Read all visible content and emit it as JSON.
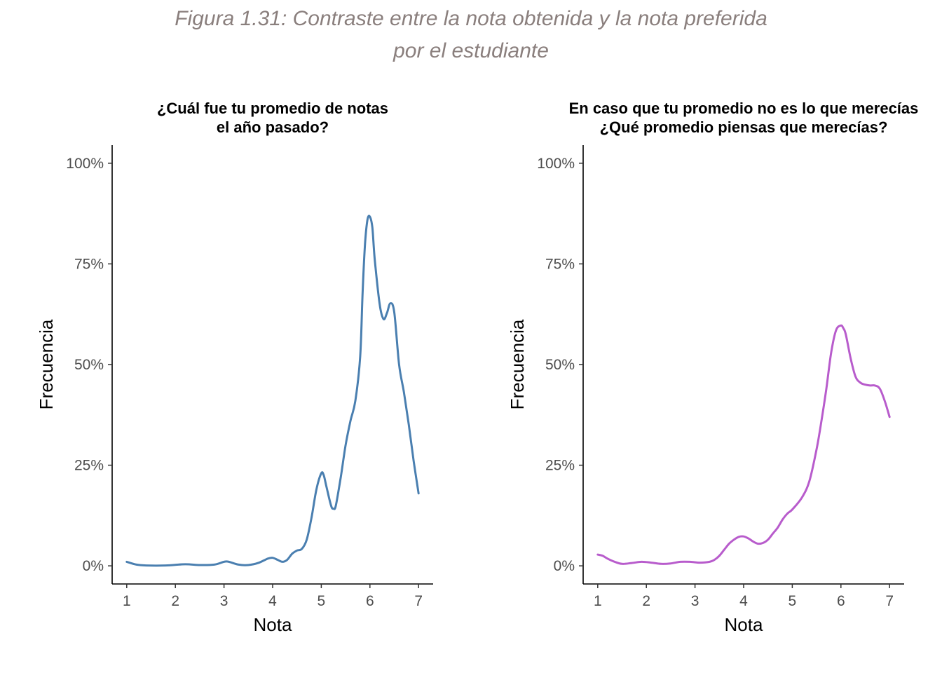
{
  "caption": {
    "line1": "Figura 1.31: Contraste entre la nota obtenida y la nota preferida",
    "line2": "por el estudiante"
  },
  "chart_data": [
    {
      "type": "line",
      "title_lines": [
        "¿Cuál fue tu promedio de notas",
        "el año pasado?"
      ],
      "xlabel": "Nota",
      "ylabel": "Frecuencia",
      "xlim": [
        0.7,
        7.3
      ],
      "ylim": [
        -0.045,
        1.045
      ],
      "x_ticks": [
        1,
        2,
        3,
        4,
        5,
        6,
        7
      ],
      "x_tick_labels": [
        "1",
        "2",
        "3",
        "4",
        "5",
        "6",
        "7"
      ],
      "y_ticks": [
        0,
        0.25,
        0.5,
        0.75,
        1.0
      ],
      "y_tick_labels": [
        "0%",
        "25%",
        "50%",
        "75%",
        "100%"
      ],
      "color": "#4a7fb0",
      "grid": false,
      "series": [
        {
          "x": [
            1.0,
            1.2,
            1.4,
            1.8,
            2.2,
            2.5,
            2.8,
            3.0,
            3.1,
            3.3,
            3.5,
            3.7,
            3.9,
            4.0,
            4.1,
            4.2,
            4.3,
            4.4,
            4.5,
            4.6,
            4.7,
            4.8,
            4.9,
            5.0,
            5.05,
            5.1,
            5.2,
            5.25,
            5.3,
            5.4,
            5.5,
            5.6,
            5.7,
            5.8,
            5.85,
            5.9,
            5.95,
            6.0,
            6.05,
            6.1,
            6.2,
            6.28,
            6.35,
            6.42,
            6.5,
            6.6,
            6.7,
            6.8,
            6.9,
            7.0
          ],
          "y": [
            0.01,
            0.003,
            0.001,
            0.001,
            0.004,
            0.002,
            0.003,
            0.01,
            0.01,
            0.003,
            0.002,
            0.007,
            0.018,
            0.02,
            0.015,
            0.01,
            0.015,
            0.03,
            0.038,
            0.042,
            0.065,
            0.12,
            0.19,
            0.23,
            0.225,
            0.2,
            0.15,
            0.142,
            0.15,
            0.22,
            0.3,
            0.36,
            0.41,
            0.52,
            0.68,
            0.8,
            0.86,
            0.867,
            0.84,
            0.76,
            0.65,
            0.613,
            0.628,
            0.652,
            0.63,
            0.5,
            0.43,
            0.35,
            0.26,
            0.18
          ]
        }
      ]
    },
    {
      "type": "line",
      "title_lines": [
        "En caso que tu promedio no es lo que merecías",
        "¿Qué promedio piensas que merecías?"
      ],
      "xlabel": "Nota",
      "ylabel": "Frecuencia",
      "xlim": [
        0.7,
        7.3
      ],
      "ylim": [
        -0.045,
        1.045
      ],
      "x_ticks": [
        1,
        2,
        3,
        4,
        5,
        6,
        7
      ],
      "x_tick_labels": [
        "1",
        "2",
        "3",
        "4",
        "5",
        "6",
        "7"
      ],
      "y_ticks": [
        0,
        0.25,
        0.5,
        0.75,
        1.0
      ],
      "y_tick_labels": [
        "0%",
        "25%",
        "50%",
        "75%",
        "100%"
      ],
      "color": "#b85ccc",
      "grid": false,
      "series": [
        {
          "x": [
            1.0,
            1.1,
            1.2,
            1.35,
            1.5,
            1.7,
            1.9,
            2.1,
            2.3,
            2.5,
            2.7,
            2.9,
            3.1,
            3.3,
            3.4,
            3.5,
            3.6,
            3.7,
            3.8,
            3.9,
            4.0,
            4.1,
            4.2,
            4.3,
            4.4,
            4.5,
            4.6,
            4.7,
            4.8,
            4.9,
            5.0,
            5.2,
            5.35,
            5.5,
            5.6,
            5.7,
            5.8,
            5.9,
            6.0,
            6.05,
            6.1,
            6.2,
            6.3,
            6.4,
            6.5,
            6.6,
            6.7,
            6.8,
            6.9,
            7.0
          ],
          "y": [
            0.028,
            0.025,
            0.018,
            0.01,
            0.005,
            0.007,
            0.01,
            0.008,
            0.005,
            0.006,
            0.01,
            0.01,
            0.008,
            0.01,
            0.015,
            0.025,
            0.04,
            0.055,
            0.065,
            0.072,
            0.073,
            0.068,
            0.06,
            0.055,
            0.057,
            0.065,
            0.08,
            0.095,
            0.115,
            0.13,
            0.14,
            0.17,
            0.21,
            0.29,
            0.36,
            0.44,
            0.53,
            0.585,
            0.597,
            0.59,
            0.575,
            0.515,
            0.47,
            0.455,
            0.45,
            0.448,
            0.448,
            0.44,
            0.41,
            0.37
          ]
        }
      ]
    }
  ]
}
